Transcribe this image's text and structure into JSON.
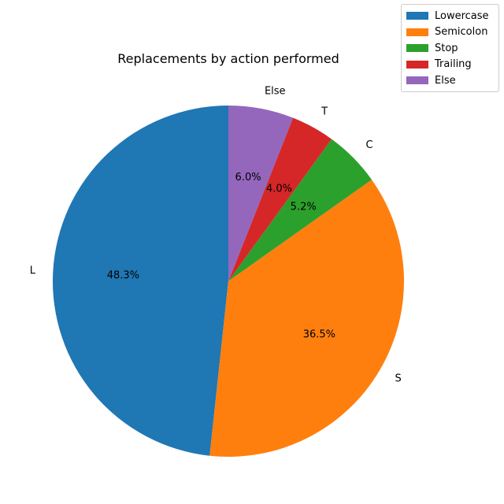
{
  "chart_data": {
    "type": "pie",
    "title": "Replacements by action performed",
    "slices": [
      {
        "label": "L",
        "legend": "Lowercase",
        "value": 48.3,
        "pct_label": "48.3%",
        "color": "#1f77b4"
      },
      {
        "label": "S",
        "legend": "Semicolon",
        "value": 36.5,
        "pct_label": "36.5%",
        "color": "#ff7f0e"
      },
      {
        "label": "C",
        "legend": "Stop",
        "value": 5.2,
        "pct_label": "5.2%",
        "color": "#2ca02c"
      },
      {
        "label": "T",
        "legend": "Trailing",
        "value": 4.0,
        "pct_label": "4.0%",
        "color": "#d62728"
      },
      {
        "label": "Else",
        "legend": "Else",
        "value": 6.0,
        "pct_label": "6.0%",
        "color": "#9467bd"
      }
    ],
    "start_angle": "top",
    "direction": "counterclockwise",
    "legend_position": "top-right"
  }
}
